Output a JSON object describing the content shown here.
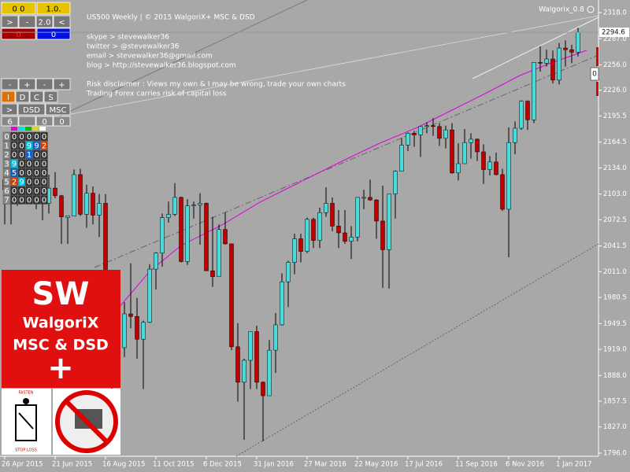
{
  "chart_data": {
    "type": "candlestick",
    "title": "US500 Weekly | © 2015 WalgoriX+ MSC & DSD",
    "indicator_label": "Walgorix_0.8",
    "info": [
      "skype > stevewalker36",
      "twitter > @stevewalker36",
      "email > stevewalker36@gmail.com",
      "blog > http://stevewalker36.blogspot.com",
      "",
      "Risk disclaimer : Views my own & I may be wrong, trade your own charts",
      "Trading Forex carries risk of capital loss"
    ],
    "categories": [
      "26 Apr 2015",
      null,
      null,
      null,
      null,
      null,
      null,
      null,
      "21 Jun 2015",
      null,
      null,
      null,
      null,
      null,
      null,
      null,
      "16 Aug 2015",
      null,
      null,
      null,
      null,
      null,
      null,
      null,
      "11 Oct 2015",
      null,
      null,
      null,
      null,
      null,
      null,
      null,
      "6 Dec 2015",
      null,
      null,
      null,
      null,
      null,
      null,
      null,
      "31 Jan 2016",
      null,
      null,
      null,
      null,
      null,
      null,
      null,
      "27 Mar 2016",
      null,
      null,
      null,
      null,
      null,
      null,
      null,
      "22 May 2016",
      null,
      null,
      null,
      null,
      null,
      null,
      null,
      "17 Jul 2016",
      null,
      null,
      null,
      null,
      null,
      null,
      null,
      "11 Sep 2016",
      null,
      null,
      null,
      null,
      null,
      null,
      null,
      "6 Nov 2016",
      null,
      null,
      null,
      null,
      null,
      null,
      null,
      "1 Jan 2017",
      null,
      null,
      null
    ],
    "open": [
      2120,
      2108,
      2105,
      2122,
      2125,
      2108,
      2092,
      2092,
      2110,
      2101,
      2075,
      2077,
      2126,
      2079,
      2104,
      2078,
      2092,
      1971,
      1986,
      1921,
      1961,
      1958,
      1931,
      1951,
      2014,
      2033,
      2075,
      2079,
      2099,
      2023,
      2089,
      2090,
      2092,
      2012,
      2005,
      2061,
      2044,
      1922,
      1880,
      1906,
      1940,
      1880,
      1864,
      1918,
      1948,
      1999,
      2022,
      2050,
      2035,
      2073,
      2048,
      2081,
      2092,
      2065,
      2057,
      2047,
      2052,
      2099,
      2099,
      2096,
      2071,
      2037,
      2103,
      2130,
      2161,
      2175,
      2173,
      2183,
      2184,
      2183,
      2169,
      2179,
      2128,
      2139,
      2164,
      2168,
      2153,
      2132,
      2141,
      2126,
      2085,
      2164,
      2181,
      2213,
      2191,
      2259,
      2258,
      2263,
      2238,
      2276,
      2274,
      2271
    ],
    "high": [
      2126,
      2117,
      2123,
      2135,
      2126,
      2121,
      2115,
      2126,
      2129,
      2102,
      2077,
      2132,
      2133,
      2114,
      2112,
      2103,
      2103,
      1989,
      1993,
      1975,
      2021,
      1980,
      1953,
      2020,
      2034,
      2080,
      2094,
      2116,
      2100,
      2097,
      2094,
      2104,
      2093,
      2076,
      2067,
      2081,
      2044,
      1950,
      1908,
      1940,
      1947,
      1881,
      1930,
      1962,
      2009,
      2024,
      2056,
      2056,
      2075,
      2075,
      2087,
      2111,
      2099,
      2084,
      2084,
      2065,
      2094,
      2108,
      2120,
      2097,
      2113,
      2103,
      2131,
      2169,
      2176,
      2178,
      2183,
      2188,
      2193,
      2187,
      2184,
      2187,
      2163,
      2180,
      2175,
      2169,
      2162,
      2148,
      2152,
      2133,
      2182,
      2189,
      2214,
      2214,
      2259,
      2278,
      2274,
      2273,
      2282,
      2285,
      2280,
      2300
    ],
    "low": [
      2067,
      2067,
      2089,
      2118,
      2099,
      2085,
      2072,
      2080,
      2098,
      2044,
      2044,
      2077,
      2077,
      2063,
      2067,
      2052,
      1970,
      1867,
      1903,
      1910,
      1944,
      1908,
      1872,
      1950,
      1990,
      2017,
      2069,
      2077,
      2022,
      2019,
      2074,
      2043,
      2013,
      1993,
      2005,
      2043,
      1918,
      1857,
      1812,
      1872,
      1872,
      1810,
      1864,
      1891,
      1947,
      1969,
      2008,
      2022,
      2033,
      2039,
      2039,
      2076,
      2059,
      2039,
      2044,
      2026,
      2047,
      2085,
      2095,
      2050,
      1992,
      1991,
      2074,
      2130,
      2154,
      2159,
      2147,
      2175,
      2172,
      2160,
      2157,
      2127,
      2119,
      2139,
      2145,
      2142,
      2115,
      2125,
      2125,
      2083,
      2028,
      2150,
      2179,
      2179,
      2187,
      2248,
      2254,
      2234,
      2233,
      2254,
      2258,
      2266
    ],
    "close": [
      2108,
      2116,
      2122,
      2126,
      2107,
      2092,
      2094,
      2110,
      2101,
      2076,
      2077,
      2126,
      2079,
      2104,
      2078,
      2092,
      1971,
      1989,
      1921,
      1961,
      1958,
      1931,
      1951,
      2014,
      2033,
      2075,
      2079,
      2099,
      2023,
      2089,
      2090,
      2092,
      2012,
      2005,
      2061,
      2044,
      1922,
      1880,
      1906,
      1940,
      1880,
      1864,
      1918,
      1948,
      1999,
      2022,
      2050,
      2035,
      2073,
      2048,
      2081,
      2092,
      2065,
      2057,
      2047,
      2052,
      2099,
      2099,
      2096,
      2071,
      2037,
      2103,
      2130,
      2161,
      2175,
      2173,
      2183,
      2184,
      2183,
      2169,
      2179,
      2128,
      2139,
      2164,
      2168,
      2153,
      2132,
      2141,
      2126,
      2085,
      2164,
      2181,
      2213,
      2191,
      2259,
      2258,
      2263,
      2238,
      2276,
      2274,
      2271,
      2294.6
    ],
    "up_color": "#45dcdc",
    "down_color": "#c00000",
    "wick_color": "#000000",
    "last_price": 2294.6,
    "ylim": [
      1796,
      2318
    ],
    "yticks": [
      {
        "value": 2318,
        "label": "2318.0"
      },
      {
        "value": 2287,
        "label": "2287.0"
      },
      {
        "value": 2256,
        "label": "2256.0"
      },
      {
        "value": 2226,
        "label": "2226.0"
      },
      2195.5,
      2164.5,
      {
        "value": 2134,
        "label": "2134.0"
      },
      {
        "value": 2103,
        "label": "2103.0"
      },
      2072.5,
      2041.5,
      {
        "value": 2011,
        "label": "2011.0"
      },
      1980.5,
      1949.5,
      {
        "value": 1919,
        "label": "1919.0"
      },
      {
        "value": 1888,
        "label": "1888.0"
      },
      1857.5,
      {
        "value": 1827,
        "label": "1827.0"
      },
      {
        "value": 1796,
        "label": "1796.0"
      }
    ],
    "grid": false
  },
  "panel": {
    "top": [
      "0 0",
      "1.0."
    ],
    "arrows": [
      ">",
      "-",
      "2.0",
      "<"
    ],
    "counters": [
      "0",
      "0"
    ],
    "pm": [
      "-",
      "+",
      "-",
      "+"
    ],
    "letters": [
      "I",
      "D",
      "C",
      "S"
    ],
    "mode": [
      ">",
      "DSD",
      "MSC"
    ],
    "row": [
      "6",
      "",
      "0",
      "0"
    ],
    "grid": [
      [
        "0",
        "0",
        "0",
        "0",
        "0",
        "0"
      ],
      [
        "1",
        "0",
        "0",
        "9",
        "9",
        "2"
      ],
      [
        "2",
        "0",
        "0",
        "1",
        "0",
        "0"
      ],
      [
        "3",
        "9",
        "0",
        "0",
        "0",
        "0"
      ],
      [
        "4",
        "5",
        "0",
        "0",
        "0",
        "0"
      ],
      [
        "5",
        "2",
        "9",
        "0",
        "0",
        "0"
      ],
      [
        "6",
        "0",
        "0",
        "0",
        "0",
        "0"
      ],
      [
        "7",
        "0",
        "0",
        "0",
        "0",
        "0"
      ]
    ],
    "side_marker": "0"
  },
  "logo": {
    "lines": [
      "SW",
      "WalgoriX",
      "MSC & DSD",
      "+"
    ],
    "badge_top": "FASTEN",
    "badge_bottom": "STOP LOSS"
  }
}
